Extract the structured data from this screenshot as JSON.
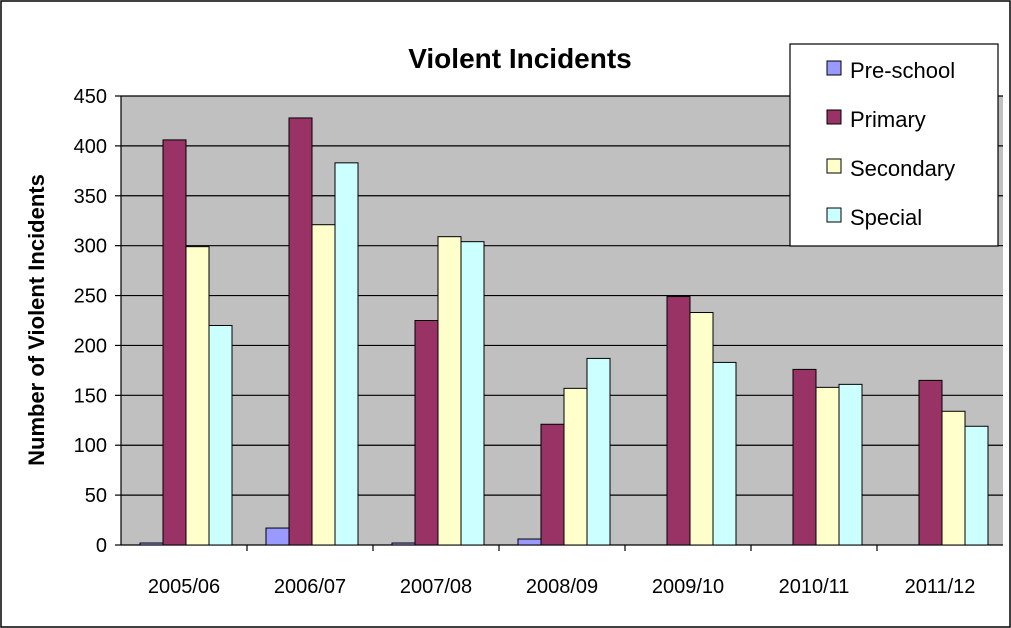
{
  "chart_data": {
    "type": "bar",
    "title": "Violent Incidents",
    "xlabel": "",
    "ylabel": "Number of Violent Incidents",
    "ylim": [
      0,
      450
    ],
    "yticks": [
      0,
      50,
      100,
      150,
      200,
      250,
      300,
      350,
      400,
      450
    ],
    "grid": true,
    "legend_position": "top-right",
    "categories": [
      "2005/06",
      "2006/07",
      "2007/08",
      "2008/09",
      "2009/10",
      "2010/11",
      "2011/12"
    ],
    "series": [
      {
        "name": "Pre-school",
        "color": "#9999ff",
        "values": [
          2,
          17,
          2,
          6,
          0,
          0,
          0
        ]
      },
      {
        "name": "Primary",
        "color": "#993366",
        "values": [
          406,
          428,
          225,
          121,
          249,
          176,
          165
        ]
      },
      {
        "name": "Secondary",
        "color": "#ffffcc",
        "values": [
          299,
          321,
          309,
          157,
          233,
          158,
          134
        ]
      },
      {
        "name": "Special",
        "color": "#ccffff",
        "values": [
          220,
          383,
          304,
          187,
          183,
          161,
          119
        ]
      }
    ],
    "plot_background": "#c0c0c0"
  }
}
